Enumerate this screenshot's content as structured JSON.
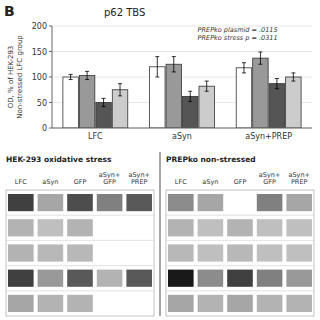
{
  "chart_data": [
    {
      "type": "bar",
      "title": "p62 TBS",
      "panel_label": "B",
      "ylabel": "OD, % of HEK-293\nNon-stressed LFC group",
      "annotation": "PREPko plasmid = .0115\nPREPko stress p = .0311",
      "categories": [
        "LFC",
        "aSyn",
        "aSyn+PREP"
      ],
      "series": [
        {
          "color": "#ffffff",
          "values": [
            100,
            120,
            118
          ],
          "errors": [
            5,
            20,
            10
          ]
        },
        {
          "color": "#999999",
          "values": [
            103,
            125,
            137
          ],
          "errors": [
            8,
            15,
            12
          ]
        },
        {
          "color": "#555555",
          "values": [
            50,
            62,
            87
          ],
          "errors": [
            8,
            10,
            10
          ]
        },
        {
          "color": "#cccccc",
          "values": [
            75,
            82,
            100
          ],
          "errors": [
            12,
            10,
            8
          ]
        }
      ],
      "ylim": [
        0,
        200
      ],
      "yticks": [
        0,
        50,
        100,
        150,
        200
      ]
    },
    {
      "type": "heatmap",
      "title": "HEK-293 oxidative stress",
      "categories": [
        "LFC",
        "aSyn",
        "GFP",
        "aSyn+\nGFP",
        "aSyn+\nPREP"
      ],
      "cells": [
        [
          0.75,
          0.35,
          0.7,
          0.5,
          0.65
        ],
        [
          0.3,
          0.25,
          0.3,
          0.0,
          0.0
        ],
        [
          0.3,
          0.28,
          0.28,
          0.0,
          0.0
        ],
        [
          0.75,
          0.4,
          0.65,
          0.3,
          0.65
        ],
        [
          0.35,
          0.3,
          0.3,
          0.0,
          0.0
        ]
      ],
      "value_range": [
        0,
        1
      ]
    },
    {
      "type": "heatmap",
      "title": "PREPko non-stressed",
      "categories": [
        "LFC",
        "aSyn",
        "GFP",
        "aSyn+\nGFP",
        "aSyn+\nPREP"
      ],
      "cells": [
        [
          0.45,
          0.35,
          0.0,
          0.5,
          0.35
        ],
        [
          0.3,
          0.25,
          0.3,
          0.25,
          0.25
        ],
        [
          0.28,
          0.25,
          0.28,
          0.25,
          0.25
        ],
        [
          0.9,
          0.45,
          0.75,
          0.5,
          0.4
        ],
        [
          0.35,
          0.3,
          0.35,
          0.3,
          0.3
        ]
      ],
      "value_range": [
        0,
        1
      ]
    }
  ]
}
